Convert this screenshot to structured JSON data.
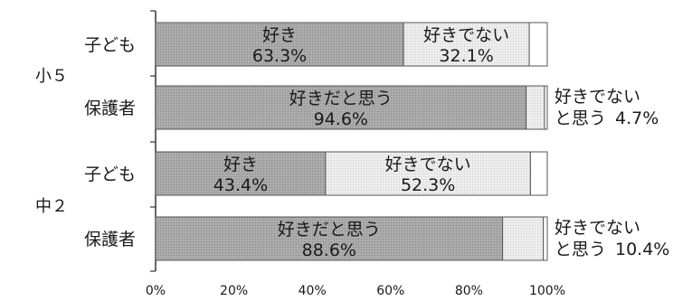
{
  "chart_data": {
    "type": "bar",
    "orientation": "horizontal",
    "stacked": true,
    "xlim": [
      0,
      100
    ],
    "x_ticks": [
      "0%",
      "20%",
      "40%",
      "60%",
      "80%",
      "100%"
    ],
    "groups": [
      {
        "label": "小５",
        "rows": [
          0,
          1
        ]
      },
      {
        "label": "中２",
        "rows": [
          2,
          3
        ]
      }
    ],
    "rows": [
      {
        "category": "子ども",
        "segments": [
          {
            "name": "好き",
            "value": 63.3,
            "label": "63.3%",
            "color": "#a8a8a8"
          },
          {
            "name": "好きでない",
            "value": 32.1,
            "label": "32.1%",
            "color": "#e6e6e6"
          },
          {
            "name": "",
            "value": 4.6,
            "label": "",
            "color": "#ffffff"
          }
        ],
        "outside_label": null
      },
      {
        "category": "保護者",
        "segments": [
          {
            "name": "好きだと思う",
            "value": 94.6,
            "label": "94.6%",
            "color": "#a8a8a8"
          },
          {
            "name": "",
            "value": 4.7,
            "label": "",
            "color": "#e6e6e6"
          },
          {
            "name": "",
            "value": 0.7,
            "label": "",
            "color": "#ffffff"
          }
        ],
        "outside_label": {
          "line1": "好きでない",
          "line2": "と思う",
          "value": "4.7%"
        }
      },
      {
        "category": "子ども",
        "segments": [
          {
            "name": "好き",
            "value": 43.4,
            "label": "43.4%",
            "color": "#a8a8a8"
          },
          {
            "name": "好きでない",
            "value": 52.3,
            "label": "52.3%",
            "color": "#e6e6e6"
          },
          {
            "name": "",
            "value": 4.3,
            "label": "",
            "color": "#ffffff"
          }
        ],
        "outside_label": null
      },
      {
        "category": "保護者",
        "segments": [
          {
            "name": "好きだと思う",
            "value": 88.6,
            "label": "88.6%",
            "color": "#a8a8a8"
          },
          {
            "name": "",
            "value": 10.4,
            "label": "",
            "color": "#e6e6e6"
          },
          {
            "name": "",
            "value": 1.0,
            "label": "",
            "color": "#ffffff"
          }
        ],
        "outside_label": {
          "line1": "好きでない",
          "line2": "と思う",
          "value": "10.4%"
        }
      }
    ]
  }
}
